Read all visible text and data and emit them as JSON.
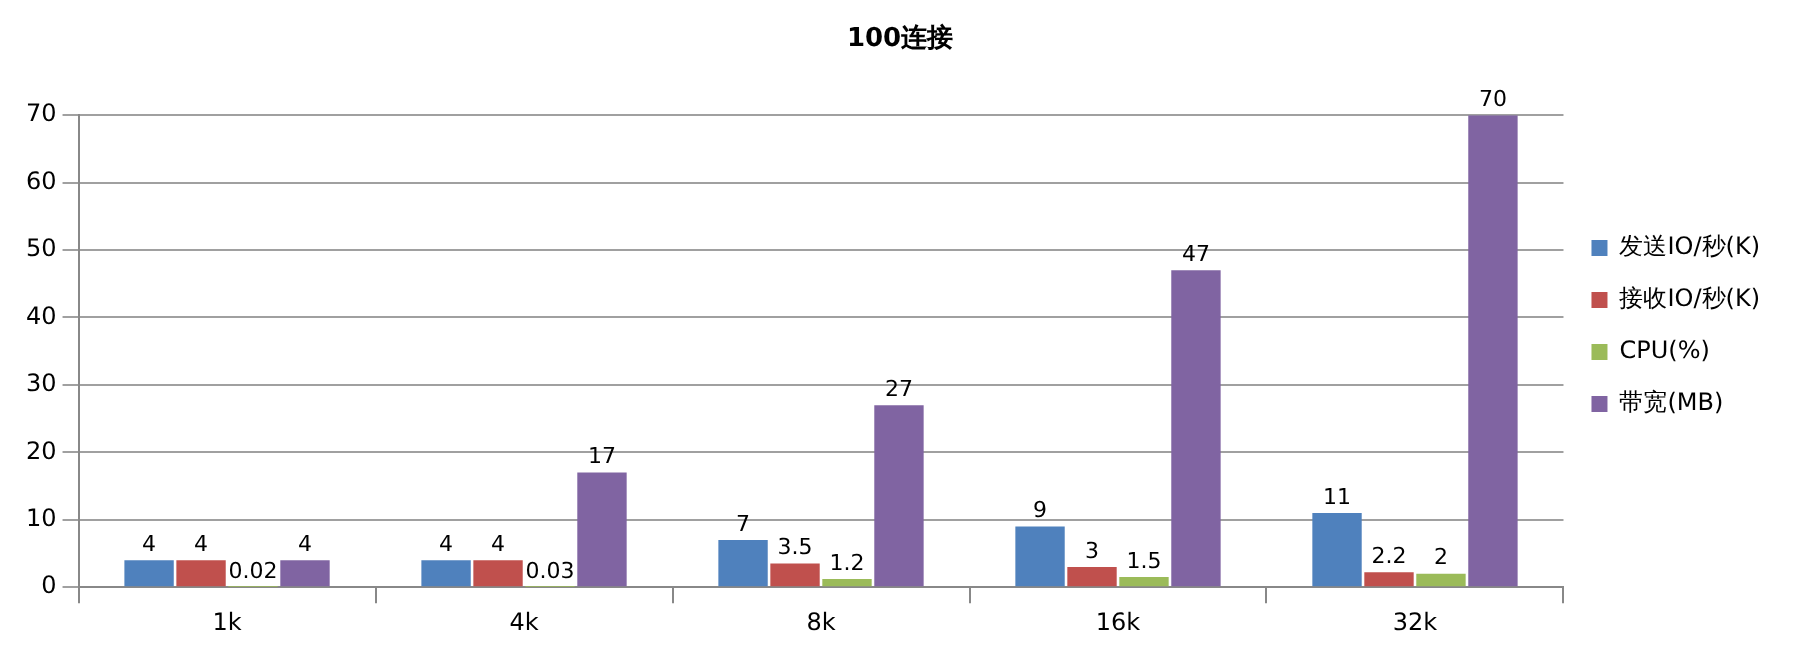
{
  "chart_data": {
    "type": "bar",
    "title": "100连接",
    "categories": [
      "1k",
      "4k",
      "8k",
      "16k",
      "32k"
    ],
    "series": [
      {
        "name": "发送IO/秒(K)",
        "color": "#4f81bd",
        "values": [
          4,
          4,
          7,
          9,
          11
        ]
      },
      {
        "name": "接收IO/秒(K)",
        "color": "#c0504d",
        "values": [
          4,
          4,
          3.5,
          3,
          2.2
        ]
      },
      {
        "name": "CPU(%)",
        "color": "#9bbb59",
        "values": [
          0.02,
          0.03,
          1.2,
          1.5,
          2
        ]
      },
      {
        "name": "带宽(MB)",
        "color": "#8064a2",
        "values": [
          4,
          17,
          27,
          47,
          70
        ]
      }
    ],
    "ylim": [
      0,
      70
    ],
    "yticks": [
      0,
      10,
      20,
      30,
      40,
      50,
      60,
      70
    ],
    "grid": "y",
    "legend": "right",
    "data_labels": true
  }
}
